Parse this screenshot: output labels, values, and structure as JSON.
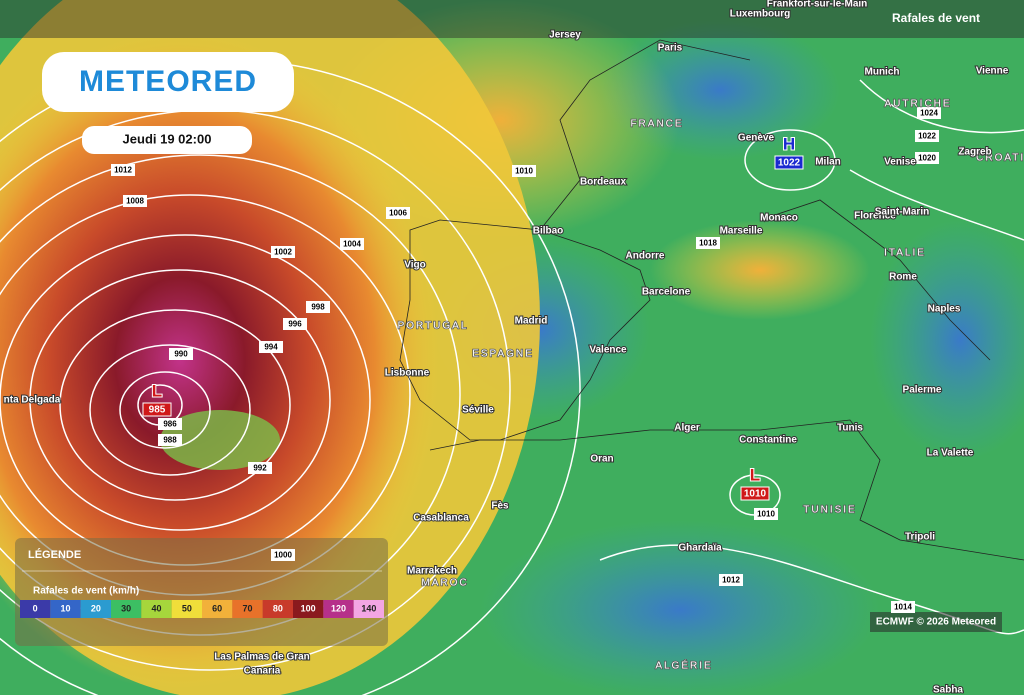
{
  "header": {
    "title": "Rafales de vent",
    "logo": "METEORED",
    "date": "Jeudi 19 02:00"
  },
  "pressure_systems": [
    {
      "letter": "L",
      "value": "985"
    },
    {
      "letter": "H",
      "value": "1022"
    },
    {
      "letter": "L",
      "value": "1010"
    }
  ],
  "isobar_labels": [
    "1012",
    "1008",
    "1006",
    "1010",
    "1004",
    "1002",
    "998",
    "996",
    "994",
    "990",
    "986",
    "988",
    "992",
    "1000",
    "1018",
    "1024",
    "1022",
    "1020",
    "1010",
    "1012",
    "1014"
  ],
  "cities": [
    "Frankfort-sur-le-Main",
    "Luxembourg",
    "Jersey",
    "Paris",
    "Munich",
    "Vienne",
    "Genève",
    "Milan",
    "Venise",
    "Zagreb",
    "Bordeaux",
    "Monaco",
    "Marseille",
    "Florence",
    "Saint-Marin",
    "Bilbao",
    "Andorre",
    "Vigo",
    "Barcelone",
    "Rome",
    "Madrid",
    "Naples",
    "Valence",
    "Lisbonne",
    "Séville",
    "Palerme",
    "Alger",
    "Constantine",
    "Tunis",
    "La Valette",
    "Oran",
    "Fès",
    "Casablanca",
    "Tripoli",
    "Ghardaïa",
    "Marrakech",
    "nta Delgada",
    "Sabha"
  ],
  "cities_multiline": [
    [
      "Las Palmas de Gran",
      "Canaria"
    ]
  ],
  "countries": [
    "FRANCE",
    "AUTRICHE",
    "CROATIE",
    "ITALIE",
    "PORTUGAL",
    "ESPAGNE",
    "TUNISIE",
    "MAROC",
    "ALGÉRIE"
  ],
  "legend": {
    "title": "LÉGENDE",
    "subtitle": "Rafales de vent (km/h)",
    "scale": [
      {
        "label": "0",
        "color": "#3b3aa8"
      },
      {
        "label": "10",
        "color": "#3466c8"
      },
      {
        "label": "20",
        "color": "#2b9bd0"
      },
      {
        "label": "30",
        "color": "#3cbf63"
      },
      {
        "label": "40",
        "color": "#a6d63c"
      },
      {
        "label": "50",
        "color": "#f0de3a"
      },
      {
        "label": "60",
        "color": "#f2b13a"
      },
      {
        "label": "70",
        "color": "#e8722a"
      },
      {
        "label": "80",
        "color": "#c83a2a"
      },
      {
        "label": "100",
        "color": "#8a1a1e"
      },
      {
        "label": "120",
        "color": "#b6308a"
      },
      {
        "label": "140",
        "color": "#f3a6e4"
      }
    ]
  },
  "credit": "ECMWF © 2026 Meteored"
}
